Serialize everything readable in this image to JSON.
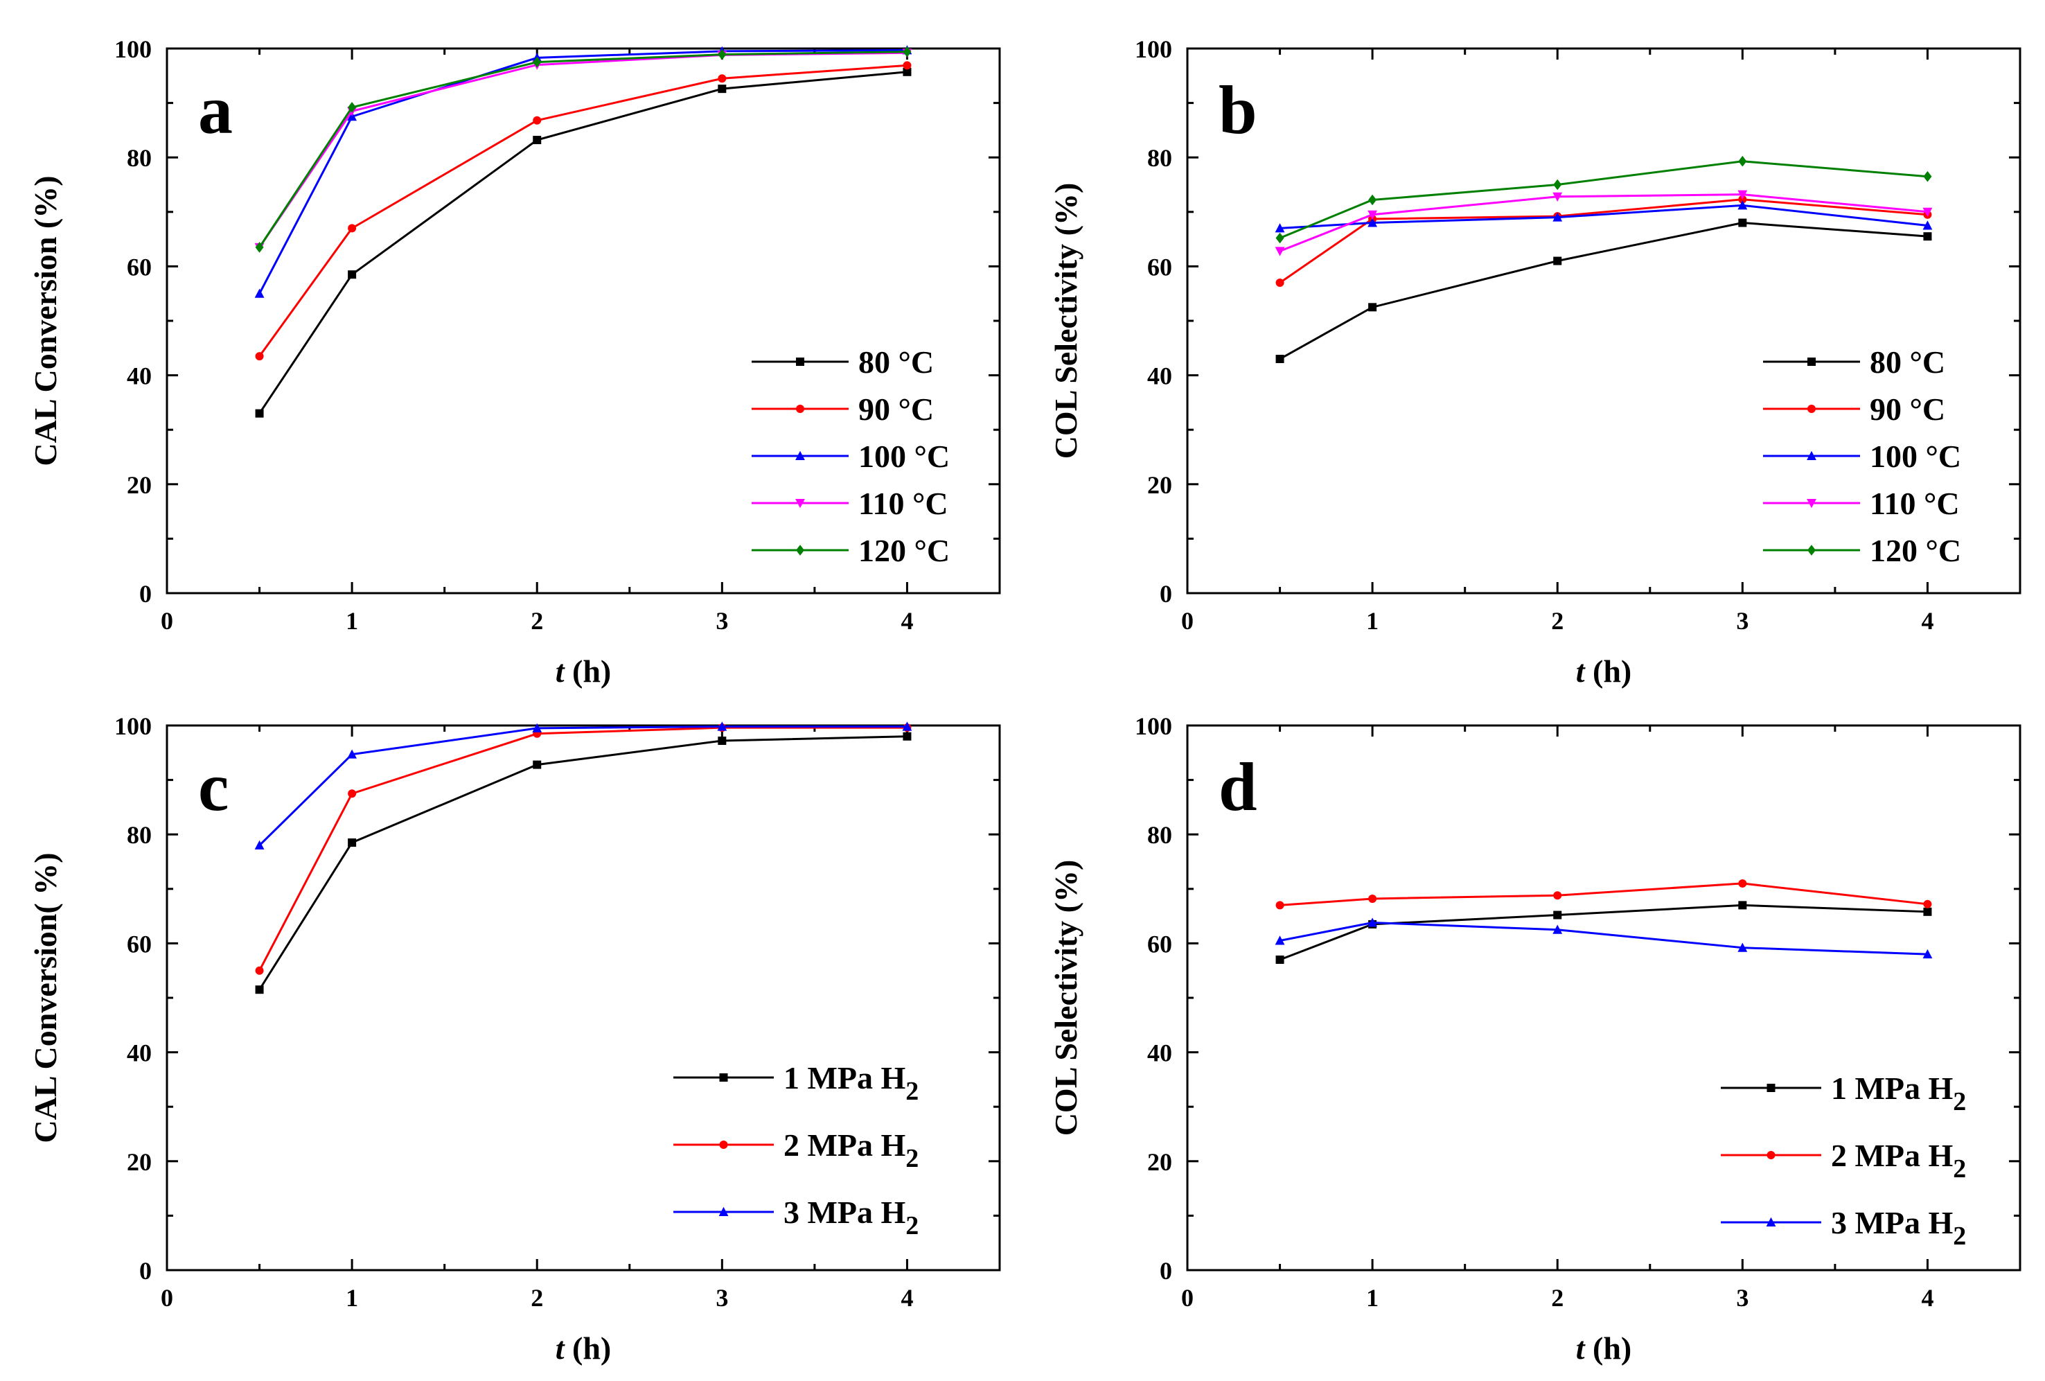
{
  "chart_data": [
    {
      "type": "line",
      "panel_label": "a",
      "xlabel_italic": "t",
      "xlabel_rest": " (h)",
      "ylabel": "CAL Conversion (%)",
      "xlim": [
        0,
        4.5
      ],
      "ylim": [
        0,
        100
      ],
      "xticks": [
        "0",
        "1",
        "2",
        "3",
        "4"
      ],
      "yticks": [
        "0",
        "20",
        "40",
        "60",
        "80",
        "100"
      ],
      "grid": false,
      "legend_position": "bottom-right",
      "x": [
        0.5,
        1,
        2,
        3,
        4
      ],
      "series": [
        {
          "name": "80 °C",
          "sub": "",
          "color": "#000000",
          "marker": "square",
          "values": [
            33,
            58.5,
            83.2,
            92.6,
            95.7
          ]
        },
        {
          "name": "90 °C",
          "sub": "",
          "color": "#ff0000",
          "marker": "circle",
          "values": [
            43.5,
            67.0,
            86.8,
            94.5,
            96.9
          ]
        },
        {
          "name": "100 °C",
          "sub": "",
          "color": "#0000ff",
          "marker": "triangle-up",
          "values": [
            55.0,
            87.5,
            98.3,
            99.5,
            99.7
          ]
        },
        {
          "name": "110 °C",
          "sub": "",
          "color": "#ff00ff",
          "marker": "triangle-down",
          "values": [
            63.5,
            88.5,
            97.0,
            98.8,
            99.2
          ]
        },
        {
          "name": "120 °C",
          "sub": "",
          "color": "#008000",
          "marker": "diamond",
          "values": [
            63.5,
            89.2,
            97.5,
            98.9,
            99.4
          ]
        }
      ]
    },
    {
      "type": "line",
      "panel_label": "b",
      "xlabel_italic": "t",
      "xlabel_rest": " (h)",
      "ylabel": "COL Selectivity (%)",
      "xlim": [
        0,
        4.5
      ],
      "ylim": [
        0,
        100
      ],
      "xticks": [
        "0",
        "1",
        "2",
        "3",
        "4"
      ],
      "yticks": [
        "0",
        "20",
        "40",
        "60",
        "80",
        "100"
      ],
      "grid": false,
      "legend_position": "bottom-right",
      "x": [
        0.5,
        1,
        2,
        3,
        4
      ],
      "series": [
        {
          "name": "80 °C",
          "sub": "",
          "color": "#000000",
          "marker": "square",
          "values": [
            43.0,
            52.5,
            61.0,
            68.0,
            65.5
          ]
        },
        {
          "name": "90 °C",
          "sub": "",
          "color": "#ff0000",
          "marker": "circle",
          "values": [
            57.0,
            68.7,
            69.2,
            72.3,
            69.5
          ]
        },
        {
          "name": "100 °C",
          "sub": "",
          "color": "#0000ff",
          "marker": "triangle-up",
          "values": [
            67.0,
            68.0,
            69.0,
            71.2,
            67.5
          ]
        },
        {
          "name": "110 °C",
          "sub": "",
          "color": "#ff00ff",
          "marker": "triangle-down",
          "values": [
            62.8,
            69.5,
            72.8,
            73.2,
            70.0
          ]
        },
        {
          "name": "120 °C",
          "sub": "",
          "color": "#008000",
          "marker": "diamond",
          "values": [
            65.2,
            72.2,
            75.0,
            79.3,
            76.5
          ]
        }
      ]
    },
    {
      "type": "line",
      "panel_label": "c",
      "xlabel_italic": "t",
      "xlabel_rest": " (h)",
      "ylabel": "CAL Conversion( %)",
      "xlim": [
        0,
        4.5
      ],
      "ylim": [
        0,
        100
      ],
      "xticks": [
        "0",
        "1",
        "2",
        "3",
        "4"
      ],
      "yticks": [
        "0",
        "20",
        "40",
        "60",
        "80",
        "100"
      ],
      "grid": false,
      "legend_position": "bottom-right",
      "x": [
        0.5,
        1,
        2,
        3,
        4
      ],
      "series": [
        {
          "name": "1 MPa H",
          "sub": "2",
          "color": "#000000",
          "marker": "square",
          "values": [
            51.5,
            78.5,
            92.8,
            97.2,
            98.0
          ]
        },
        {
          "name": "2 MPa H",
          "sub": "2",
          "color": "#ff0000",
          "marker": "circle",
          "values": [
            55.0,
            87.5,
            98.5,
            99.6,
            99.6
          ]
        },
        {
          "name": "3 MPa H",
          "sub": "2",
          "color": "#0000ff",
          "marker": "triangle-up",
          "values": [
            78.0,
            94.7,
            99.5,
            99.8,
            99.8
          ]
        }
      ]
    },
    {
      "type": "line",
      "panel_label": "d",
      "xlabel_italic": "t",
      "xlabel_rest": " (h)",
      "ylabel": "COL Selectivity (%)",
      "xlim": [
        0,
        4.5
      ],
      "ylim": [
        0,
        100
      ],
      "xticks": [
        "0",
        "1",
        "2",
        "3",
        "4"
      ],
      "yticks": [
        "0",
        "20",
        "40",
        "60",
        "80",
        "100"
      ],
      "grid": false,
      "legend_position": "bottom-right",
      "x": [
        0.5,
        1,
        2,
        3,
        4
      ],
      "series": [
        {
          "name": "1 MPa H",
          "sub": "2",
          "color": "#000000",
          "marker": "square",
          "values": [
            57.0,
            63.5,
            65.2,
            67.0,
            65.8
          ]
        },
        {
          "name": "2 MPa H",
          "sub": "2",
          "color": "#ff0000",
          "marker": "circle",
          "values": [
            67.0,
            68.2,
            68.8,
            71.0,
            67.2
          ]
        },
        {
          "name": "3 MPa H",
          "sub": "2",
          "color": "#0000ff",
          "marker": "triangle-up",
          "values": [
            60.5,
            63.8,
            62.5,
            59.2,
            58.0
          ]
        }
      ]
    }
  ]
}
